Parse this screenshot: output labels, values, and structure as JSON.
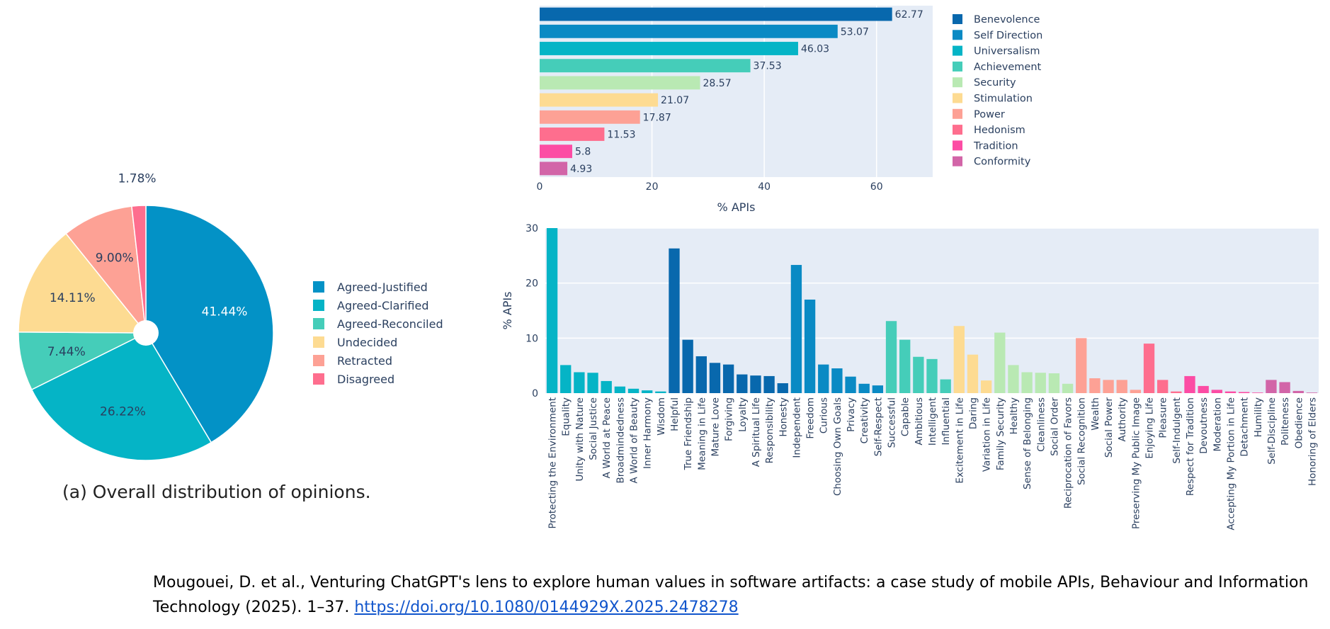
{
  "pie": {
    "caption": "(a) Overall distribution of opinions.",
    "slices": [
      {
        "label": "Agreed-Justified",
        "value": 41.44,
        "display": "41.44%",
        "color": "#0392c6"
      },
      {
        "label": "Agreed-Clarified",
        "value": 26.22,
        "display": "26.22%",
        "color": "#05b4c6"
      },
      {
        "label": "Agreed-Reconciled",
        "value": 7.44,
        "display": "7.44%",
        "color": "#45cdb9"
      },
      {
        "label": "Undecided",
        "value": 14.11,
        "display": "14.11%",
        "color": "#fddb92"
      },
      {
        "label": "Retracted",
        "value": 9.0,
        "display": "9.00%",
        "color": "#fda195"
      },
      {
        "label": "Disagreed",
        "value": 1.78,
        "display": "1.78%",
        "color": "#fe6e8e"
      }
    ]
  },
  "chart_data": [
    {
      "type": "bar",
      "orientation": "horizontal",
      "xlabel": "% APIs",
      "xlim": [
        0,
        70
      ],
      "xticks": [
        0,
        20,
        40,
        60
      ],
      "legend_position": "right",
      "categories": [
        "Benevolence",
        "Self Direction",
        "Universalism",
        "Achievement",
        "Security",
        "Stimulation",
        "Power",
        "Hedonism",
        "Tradition",
        "Conformity"
      ],
      "values": [
        62.77,
        53.07,
        46.03,
        37.53,
        28.57,
        21.07,
        17.87,
        11.53,
        5.8,
        4.93
      ],
      "labels": [
        "62.77",
        "53.07",
        "46.03",
        "37.53",
        "28.57",
        "21.07",
        "17.87",
        "11.53",
        "5.8",
        "4.93"
      ],
      "colors": [
        "#0868ad",
        "#0a8ac4",
        "#05b4c6",
        "#45cdb9",
        "#b9e9b3",
        "#fddb92",
        "#fda195",
        "#fe6e8e",
        "#fc4ca4",
        "#d265a8"
      ]
    },
    {
      "type": "bar",
      "ylabel": "% APIs",
      "ylim": [
        0,
        30
      ],
      "yticks": [
        0,
        10,
        20,
        30
      ],
      "groups": [
        {
          "value": "Universalism",
          "color": "#05b4c6",
          "items": [
            [
              "Protecting the Environment",
              30
            ],
            [
              "Equality",
              5.1
            ],
            [
              "Unity with Nature",
              3.8
            ],
            [
              "Social Justice",
              3.7
            ],
            [
              "A World at Peace",
              2.2
            ],
            [
              "Broadmindedness",
              1.2
            ],
            [
              "A World of Beauty",
              0.8
            ],
            [
              "Inner Harmony",
              0.5
            ],
            [
              "Wisdom",
              0.3
            ]
          ]
        },
        {
          "value": "Benevolence",
          "color": "#0868ad",
          "items": [
            [
              "Helpful",
              26.3
            ],
            [
              "True Friendship",
              9.7
            ],
            [
              "Meaning in Life",
              6.7
            ],
            [
              "Mature Love",
              5.5
            ],
            [
              "Forgiving",
              5.2
            ],
            [
              "Loyalty",
              3.4
            ],
            [
              "A Spiritual Life",
              3.2
            ],
            [
              "Responsibility",
              3.1
            ],
            [
              "Honesty",
              1.8
            ]
          ]
        },
        {
          "value": "Self Direction",
          "color": "#0a8ac4",
          "items": [
            [
              "Independent",
              23.3
            ],
            [
              "Freedom",
              17
            ],
            [
              "Curious",
              5.2
            ],
            [
              "Choosing Own Goals",
              4.5
            ],
            [
              "Privacy",
              3
            ],
            [
              "Creativity",
              1.7
            ],
            [
              "Self-Respect",
              1.4
            ]
          ]
        },
        {
          "value": "Achievement",
          "color": "#45cdb9",
          "items": [
            [
              "Successful",
              13.1
            ],
            [
              "Capable",
              9.7
            ],
            [
              "Ambitious",
              6.6
            ],
            [
              "Intelligent",
              6.2
            ],
            [
              "Influential",
              2.5
            ]
          ]
        },
        {
          "value": "Stimulation",
          "color": "#fddb92",
          "items": [
            [
              "Excitement in Life",
              12.2
            ],
            [
              "Daring",
              7
            ],
            [
              "Variation in Life",
              2.3
            ]
          ]
        },
        {
          "value": "Security",
          "color": "#b9e9b3",
          "items": [
            [
              "Family Security",
              11
            ],
            [
              "Healthy",
              5.1
            ],
            [
              "Sense of Belonging",
              3.8
            ],
            [
              "Cleanliness",
              3.7
            ],
            [
              "Social Order",
              3.6
            ],
            [
              "Reciprocation of Favors",
              1.7
            ]
          ]
        },
        {
          "value": "Power",
          "color": "#fda195",
          "items": [
            [
              "Social Recognition",
              10
            ],
            [
              "Wealth",
              2.7
            ],
            [
              "Social Power",
              2.4
            ],
            [
              "Authority",
              2.4
            ],
            [
              "Preserving My Public Image",
              0.6
            ]
          ]
        },
        {
          "value": "Hedonism",
          "color": "#fe6e8e",
          "items": [
            [
              "Enjoying Life",
              9
            ],
            [
              "Pleasure",
              2.4
            ],
            [
              "Self-Indulgent",
              0.3
            ]
          ]
        },
        {
          "value": "Tradition",
          "color": "#fc4ca4",
          "items": [
            [
              "Respect for Tradition",
              3.1
            ],
            [
              "Devoutness",
              1.3
            ],
            [
              "Moderation",
              0.6
            ],
            [
              "Accepting My Portion in Life",
              0.3
            ],
            [
              "Detachment",
              0.2
            ],
            [
              "Humility",
              0.1
            ]
          ]
        },
        {
          "value": "Conformity",
          "color": "#d265a8",
          "items": [
            [
              "Self-Discipline",
              2.4
            ],
            [
              "Politeness",
              2
            ],
            [
              "Obedience",
              0.4
            ],
            [
              "Honoring of Elders",
              0.1
            ]
          ]
        }
      ]
    }
  ],
  "citation": {
    "text": "Mougouei, D. et al., Venturing ChatGPT's lens to explore human values in software artifacts: a case study of mobile APIs, Behaviour and Information Technology (2025). 1–37. ",
    "link": "https://doi.org/10.1080/0144929X.2025.2478278"
  }
}
